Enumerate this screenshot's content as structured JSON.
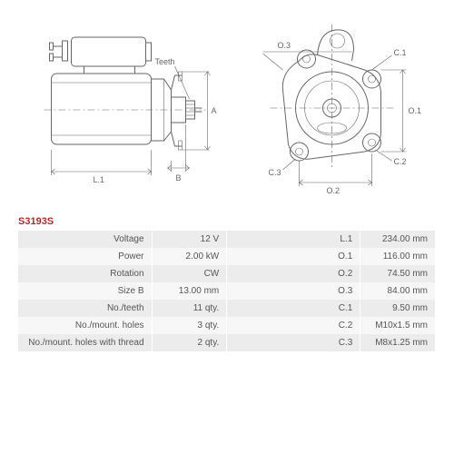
{
  "part_number": "S3193S",
  "diagram_labels": {
    "left": {
      "teeth": "Teeth",
      "L1": "L.1",
      "A": "A",
      "B": "B"
    },
    "right": {
      "O1": "O.1",
      "O2": "O.2",
      "O3": "O.3",
      "C1": "C.1",
      "C2": "C.2",
      "C3": "C.3"
    }
  },
  "specs_left": [
    {
      "label": "Voltage",
      "value": "12 V"
    },
    {
      "label": "Power",
      "value": "2.00 kW"
    },
    {
      "label": "Rotation",
      "value": "CW"
    },
    {
      "label": "Size B",
      "value": "13.00 mm"
    },
    {
      "label": "No./teeth",
      "value": "11 qty."
    },
    {
      "label": "No./mount. holes",
      "value": "3 qty."
    },
    {
      "label": "No./mount. holes with thread",
      "value": "2 qty."
    }
  ],
  "specs_right": [
    {
      "label": "L.1",
      "value": "234.00 mm"
    },
    {
      "label": "O.1",
      "value": "116.00 mm"
    },
    {
      "label": "O.2",
      "value": "74.50 mm"
    },
    {
      "label": "O.3",
      "value": "84.00 mm"
    },
    {
      "label": "C.1",
      "value": "9.50 mm"
    },
    {
      "label": "C.2",
      "value": "M10x1.5 mm"
    },
    {
      "label": "C.3",
      "value": "M8x1.25 mm"
    }
  ],
  "style": {
    "stroke": "#666666",
    "row_odd": "#ececec",
    "row_even": "#f7f7f7",
    "partno_color": "#a03030",
    "text_color": "#555555",
    "font_size_table": 10,
    "font_size_label": 9
  }
}
